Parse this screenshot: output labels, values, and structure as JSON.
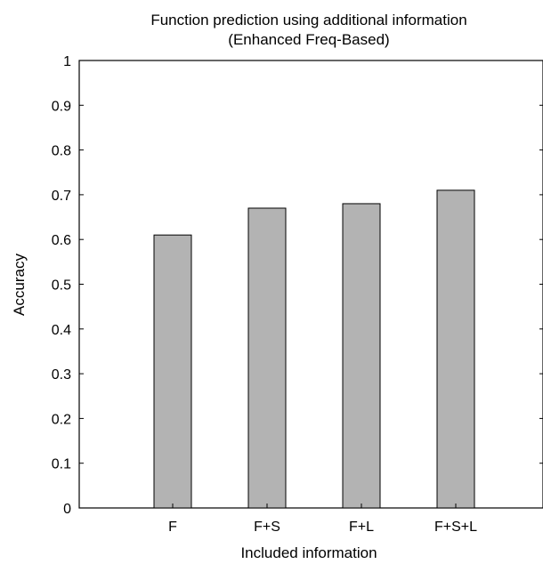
{
  "chart_data": {
    "type": "bar",
    "title": "Function prediction using additional information",
    "subtitle": "(Enhanced Freq-Based)",
    "xlabel": "Included information",
    "ylabel": "Accuracy",
    "categories": [
      "F",
      "F+S",
      "F+L",
      "F+S+L"
    ],
    "values": [
      0.61,
      0.67,
      0.68,
      0.71
    ],
    "ylim": [
      0,
      1
    ],
    "yticks": [
      "0",
      "0.1",
      "0.2",
      "0.3",
      "0.4",
      "0.5",
      "0.6",
      "0.7",
      "0.8",
      "0.9",
      "1"
    ],
    "grid": false,
    "legend": "none",
    "bar_color": "#b3b3b3",
    "edge_color": "#000000"
  }
}
